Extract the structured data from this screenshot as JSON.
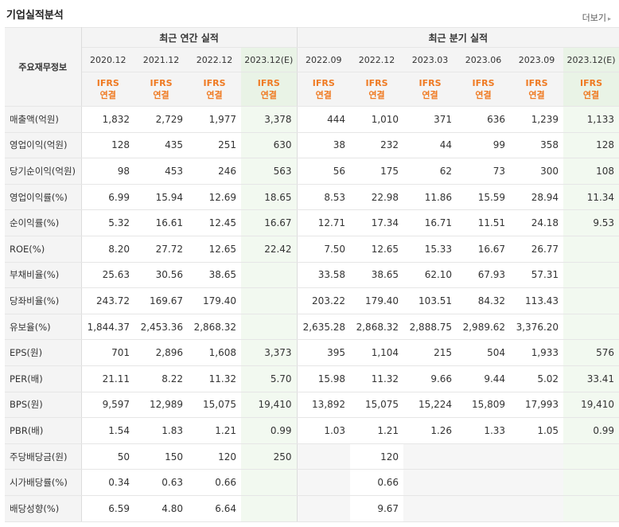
{
  "header": {
    "title": "기업실적분석",
    "more_label": "더보기",
    "more_arrow": "▸"
  },
  "table": {
    "row_header_label": "주요재무정보",
    "group_annual": "최근 연간 실적",
    "group_quarter": "최근 분기 실적",
    "periods": [
      "2020.12",
      "2021.12",
      "2022.12",
      "2023.12(E)",
      "2022.09",
      "2022.12",
      "2023.03",
      "2023.06",
      "2023.09",
      "2023.12(E)"
    ],
    "ifrs_line1": "IFRS",
    "ifrs_line2": "연결",
    "rows": [
      {
        "label": "매출액(억원)",
        "values": [
          "1,832",
          "2,729",
          "1,977",
          "3,378",
          "444",
          "1,010",
          "371",
          "636",
          "1,239",
          "1,133"
        ]
      },
      {
        "label": "영업이익(억원)",
        "values": [
          "128",
          "435",
          "251",
          "630",
          "38",
          "232",
          "44",
          "99",
          "358",
          "128"
        ]
      },
      {
        "label": "당기순이익(억원)",
        "values": [
          "98",
          "453",
          "246",
          "563",
          "56",
          "175",
          "62",
          "73",
          "300",
          "108"
        ]
      },
      {
        "label": "영업이익률(%)",
        "values": [
          "6.99",
          "15.94",
          "12.69",
          "18.65",
          "8.53",
          "22.98",
          "11.86",
          "15.59",
          "28.94",
          "11.34"
        ]
      },
      {
        "label": "순이익률(%)",
        "values": [
          "5.32",
          "16.61",
          "12.45",
          "16.67",
          "12.71",
          "17.34",
          "16.71",
          "11.51",
          "24.18",
          "9.53"
        ]
      },
      {
        "label": "ROE(%)",
        "values": [
          "8.20",
          "27.72",
          "12.65",
          "22.42",
          "7.50",
          "12.65",
          "15.33",
          "16.67",
          "26.77",
          ""
        ]
      },
      {
        "label": "부채비율(%)",
        "values": [
          "25.63",
          "30.56",
          "38.65",
          "",
          "33.58",
          "38.65",
          "62.10",
          "67.93",
          "57.31",
          ""
        ]
      },
      {
        "label": "당좌비율(%)",
        "values": [
          "243.72",
          "169.67",
          "179.40",
          "",
          "203.22",
          "179.40",
          "103.51",
          "84.32",
          "113.43",
          ""
        ]
      },
      {
        "label": "유보율(%)",
        "values": [
          "1,844.37",
          "2,453.36",
          "2,868.32",
          "",
          "2,635.28",
          "2,868.32",
          "2,888.75",
          "2,989.62",
          "3,376.20",
          ""
        ]
      },
      {
        "label": "EPS(원)",
        "values": [
          "701",
          "2,896",
          "1,608",
          "3,373",
          "395",
          "1,104",
          "215",
          "504",
          "1,933",
          "576"
        ]
      },
      {
        "label": "PER(배)",
        "values": [
          "21.11",
          "8.22",
          "11.32",
          "5.70",
          "15.98",
          "11.32",
          "9.66",
          "9.44",
          "5.02",
          "33.41"
        ]
      },
      {
        "label": "BPS(원)",
        "values": [
          "9,597",
          "12,989",
          "15,075",
          "19,410",
          "13,892",
          "15,075",
          "15,224",
          "15,809",
          "17,993",
          "19,410"
        ]
      },
      {
        "label": "PBR(배)",
        "values": [
          "1.54",
          "1.83",
          "1.21",
          "0.99",
          "1.03",
          "1.21",
          "1.26",
          "1.33",
          "1.05",
          "0.99"
        ]
      },
      {
        "label": "주당배당금(원)",
        "values": [
          "50",
          "150",
          "120",
          "250",
          "",
          "120",
          "",
          "",
          "",
          ""
        ]
      },
      {
        "label": "시가배당률(%)",
        "values": [
          "0.34",
          "0.63",
          "0.66",
          "",
          "",
          "0.66",
          "",
          "",
          "",
          ""
        ]
      },
      {
        "label": "배당성향(%)",
        "values": [
          "6.59",
          "4.80",
          "6.64",
          "",
          "",
          "9.67",
          "",
          "",
          "",
          ""
        ]
      }
    ]
  }
}
